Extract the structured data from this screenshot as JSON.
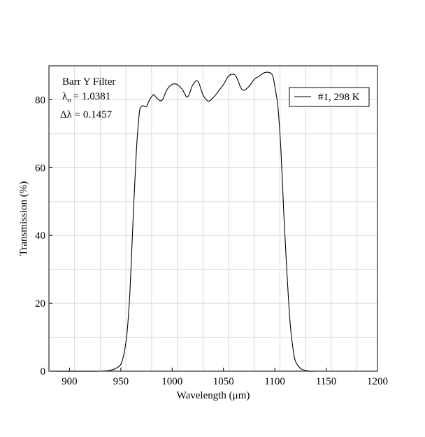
{
  "chart_data": {
    "type": "line",
    "title": "",
    "xlabel": "Wavelength (μm)",
    "ylabel": "Transmission (%)",
    "xlim": [
      880,
      1200
    ],
    "ylim": [
      0,
      90
    ],
    "x_ticks": [
      900,
      950,
      1000,
      1050,
      1100,
      1150,
      1200
    ],
    "x_tick_labels": [
      "900",
      "950",
      "1000",
      "1050",
      "1100",
      "1150",
      "1200"
    ],
    "y_ticks": [
      0,
      20,
      40,
      60,
      80
    ],
    "y_tick_labels": [
      "0",
      "20",
      "40",
      "60",
      "80"
    ],
    "grid": true,
    "legend_position": "top-right",
    "annotations": {
      "filter_name": "Barr Y Filter",
      "lambda_symbol": "λ",
      "lambda_subscript": "o",
      "lambda_value": "= 1.0381",
      "delta_lambda": "Δλ = 0.1457"
    },
    "series": [
      {
        "name": "#1, 298 K",
        "color": "#000000",
        "x": [
          880,
          930,
          940,
          945,
          950,
          953,
          956,
          959,
          962,
          965,
          968,
          970,
          972,
          975,
          978,
          982,
          985,
          990,
          995,
          1000,
          1005,
          1010,
          1015,
          1020,
          1025,
          1030,
          1035,
          1040,
          1045,
          1050,
          1055,
          1060,
          1063,
          1067,
          1070,
          1075,
          1080,
          1085,
          1090,
          1095,
          1098,
          1100,
          1103,
          1106,
          1109,
          1112,
          1115,
          1118,
          1120,
          1123,
          1126,
          1130,
          1135,
          1140,
          1200
        ],
        "y": [
          0,
          0,
          0.3,
          0.8,
          2,
          5,
          11,
          24,
          45,
          64,
          76,
          78,
          78.2,
          78,
          80,
          81.5,
          80.5,
          79.8,
          83,
          84.5,
          84.5,
          83,
          80.8,
          84.3,
          85.5,
          81.5,
          79.6,
          80.6,
          82.5,
          84.5,
          87,
          87.5,
          86.5,
          83.5,
          82.8,
          84,
          86,
          87,
          88,
          88,
          87,
          84,
          78,
          65,
          45,
          28,
          14,
          6,
          3,
          1.5,
          0.6,
          0.2,
          0,
          0,
          0
        ]
      }
    ]
  }
}
